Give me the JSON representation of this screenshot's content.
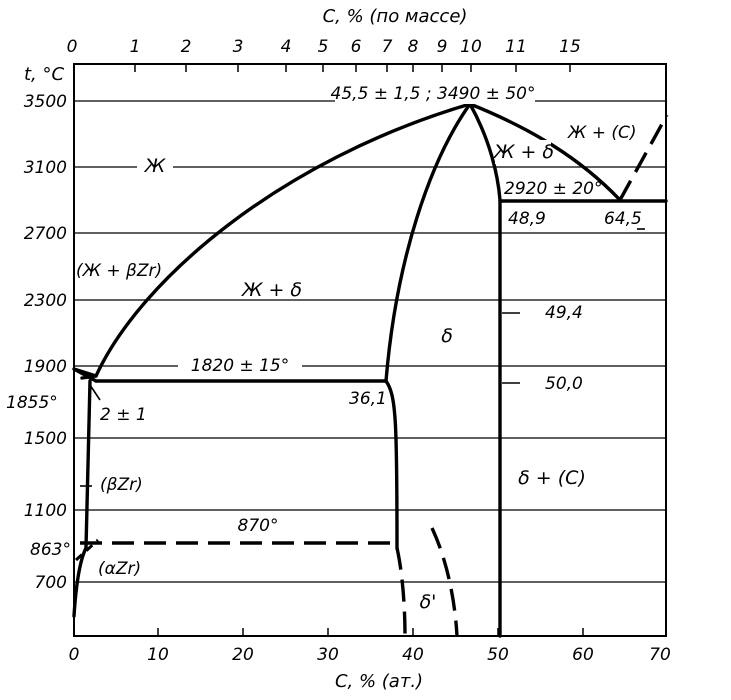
{
  "chart_data": {
    "type": "phase-diagram",
    "top_axis_label": "C, % (по массе)",
    "top_ticks": [
      "0",
      "1",
      "2",
      "3",
      "4",
      "5",
      "6",
      "7",
      "8",
      "9",
      "10",
      "11",
      "15"
    ],
    "y_axis_label": "t, °C",
    "y_ticks": [
      "3500",
      "3100",
      "2700",
      "2300",
      "1900",
      "1500",
      "1100",
      "863°",
      "700"
    ],
    "x_axis_label": "C, % (ат.)",
    "x_ticks": [
      "0",
      "10",
      "20",
      "30",
      "40",
      "50",
      "60",
      "70"
    ],
    "phase_labels": {
      "liquid": "Ж",
      "liquid_delta": "Ж + δ",
      "liquid_delta_right": "Ж + δ",
      "liquid_beta": "(Ж + βZr)",
      "delta": "δ",
      "delta_c": "δ + (С)",
      "liquid_c": "Ж + (С)",
      "beta_zr": "(βZr)",
      "alpha_zr": "(αZr)",
      "delta_prime": "δ'"
    },
    "annotations": {
      "max": "45,5 ± 1,5 ; 3490 ± 50°",
      "eutectic_right": "2920 ± 20°",
      "comp_48_9": "48,9",
      "comp_64_5": "64,5",
      "comp_49_4": "49,4",
      "comp_50_0": "50,0",
      "eutectic_left": "1820 ± 15°",
      "comp_36_1": "36,1",
      "zr_melt": "1855°",
      "comp_2": "2 ± 1",
      "eutectoid": "870°"
    }
  }
}
